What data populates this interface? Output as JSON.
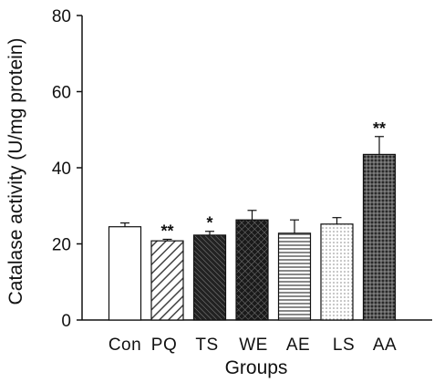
{
  "chart_data": {
    "type": "bar",
    "title": "",
    "xlabel": "Groups",
    "ylabel": "Catalase activity (U/mg protein)",
    "ylim": [
      0,
      80
    ],
    "yticks": [
      0,
      20,
      40,
      60,
      80
    ],
    "grid": false,
    "legend": "none",
    "categories": [
      "Con",
      "PQ",
      "TS",
      "WE",
      "AE",
      "LS",
      "AA"
    ],
    "series": [
      {
        "values": [
          24.5,
          20.8,
          22.3,
          26.3,
          22.8,
          25.2,
          43.5
        ],
        "errors": [
          1.0,
          0.4,
          1.0,
          2.5,
          3.5,
          1.7,
          4.7
        ],
        "significance": [
          "",
          "**",
          "*",
          "",
          "",
          "",
          "**"
        ],
        "patterns": [
          "white",
          "diagonal",
          "dense-dark",
          "crosshatch-dark",
          "horizontal",
          "dots-light",
          "grid-dark"
        ]
      }
    ]
  }
}
